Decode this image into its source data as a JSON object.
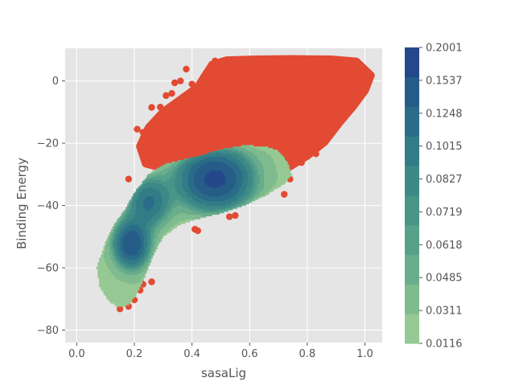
{
  "chart_data": {
    "type": "scatter",
    "overlay": "filled density contour (kde)",
    "title": "",
    "xlabel": "sasaLig",
    "ylabel": "Binding Energy",
    "xlim": [
      -0.04,
      1.06
    ],
    "ylim": [
      -84,
      10.5
    ],
    "x_ticks": [
      0.0,
      0.2,
      0.4,
      0.6,
      0.8,
      1.0
    ],
    "x_tick_labels": [
      "0.0",
      "0.2",
      "0.4",
      "0.6",
      "0.8",
      "1.0"
    ],
    "y_ticks": [
      0,
      -20,
      -40,
      -60,
      -80
    ],
    "y_tick_labels": [
      "0",
      "−20",
      "−40",
      "−60",
      "−80"
    ],
    "grid": true,
    "background": "#e5e5e5",
    "scatter_color": "#e24a33",
    "scatter_points": [
      [
        0.15,
        -73.2
      ],
      [
        0.18,
        -72.4
      ],
      [
        0.2,
        -70.3
      ],
      [
        0.22,
        -67.2
      ],
      [
        0.23,
        -65.3
      ],
      [
        0.26,
        -64.5
      ],
      [
        0.18,
        -31.5
      ],
      [
        0.21,
        -15.5
      ],
      [
        0.23,
        -16.5
      ],
      [
        0.24,
        -19.0
      ],
      [
        0.26,
        -8.5
      ],
      [
        0.29,
        -8.4
      ],
      [
        0.31,
        -4.7
      ],
      [
        0.33,
        -4.0
      ],
      [
        0.34,
        -0.6
      ],
      [
        0.36,
        0.0
      ],
      [
        0.38,
        3.8
      ],
      [
        0.4,
        -1.0
      ],
      [
        0.42,
        -3.0
      ],
      [
        0.45,
        1.5
      ],
      [
        0.47,
        -1.5
      ],
      [
        0.48,
        6.4
      ],
      [
        0.25,
        -23.5
      ],
      [
        0.27,
        -25.5
      ],
      [
        0.3,
        -22.0
      ],
      [
        0.33,
        -19.5
      ],
      [
        0.35,
        -20.5
      ],
      [
        0.41,
        -47.6
      ],
      [
        0.42,
        -48.1
      ],
      [
        0.53,
        -43.6
      ],
      [
        0.55,
        -43.2
      ],
      [
        0.72,
        -36.4
      ],
      [
        0.74,
        -31.5
      ],
      [
        0.78,
        -26.2
      ],
      [
        0.8,
        -23.8
      ],
      [
        0.83,
        -23.4
      ],
      [
        0.85,
        -19.0
      ],
      [
        0.88,
        -15.5
      ],
      [
        0.9,
        -13.0
      ],
      [
        0.93,
        -10.1
      ],
      [
        0.95,
        -6.0
      ],
      [
        0.98,
        -2.0
      ],
      [
        1.0,
        0.0
      ],
      [
        1.01,
        0.4
      ],
      [
        0.99,
        4.5
      ],
      [
        0.95,
        6.2
      ],
      [
        0.9,
        6.5
      ],
      [
        0.8,
        6.7
      ],
      [
        0.7,
        6.8
      ],
      [
        0.6,
        6.6
      ],
      [
        0.55,
        5.8
      ],
      [
        0.53,
        5.0
      ]
    ],
    "scatter_cloud_outline": [
      [
        0.47,
        5.2
      ],
      [
        0.52,
        6.6
      ],
      [
        0.62,
        6.9
      ],
      [
        0.75,
        7.0
      ],
      [
        0.88,
        6.9
      ],
      [
        0.97,
        6.2
      ],
      [
        1.02,
        1.8
      ],
      [
        1.0,
        -3.0
      ],
      [
        0.96,
        -8.0
      ],
      [
        0.91,
        -13.5
      ],
      [
        0.86,
        -19.5
      ],
      [
        0.8,
        -24.0
      ],
      [
        0.73,
        -28.0
      ],
      [
        0.64,
        -30.0
      ],
      [
        0.52,
        -30.0
      ],
      [
        0.4,
        -28.5
      ],
      [
        0.3,
        -28.0
      ],
      [
        0.24,
        -26.5
      ],
      [
        0.22,
        -21.0
      ],
      [
        0.25,
        -15.0
      ],
      [
        0.3,
        -10.0
      ],
      [
        0.36,
        -6.0
      ],
      [
        0.42,
        -2.0
      ]
    ],
    "density_levels": [
      0.0116,
      0.0311,
      0.0485,
      0.0618,
      0.0719,
      0.0827,
      0.1015,
      0.1248,
      0.1537,
      0.2001
    ],
    "density_colors": [
      "#96c993",
      "#7fbb8e",
      "#69ad8c",
      "#57a18a",
      "#489588",
      "#3c8987",
      "#327c87",
      "#2b6d88",
      "#265d88",
      "#24488a"
    ],
    "density_peaks": [
      {
        "x": 0.48,
        "y": -31.5
      },
      {
        "x": 0.19,
        "y": -52.5
      },
      {
        "x": 0.25,
        "y": -39.0
      }
    ],
    "colorbar": {
      "tick_labels": [
        "0.2001",
        "0.1537",
        "0.1248",
        "0.1015",
        "0.0827",
        "0.0719",
        "0.0618",
        "0.0485",
        "0.0311",
        "0.0116"
      ]
    }
  }
}
